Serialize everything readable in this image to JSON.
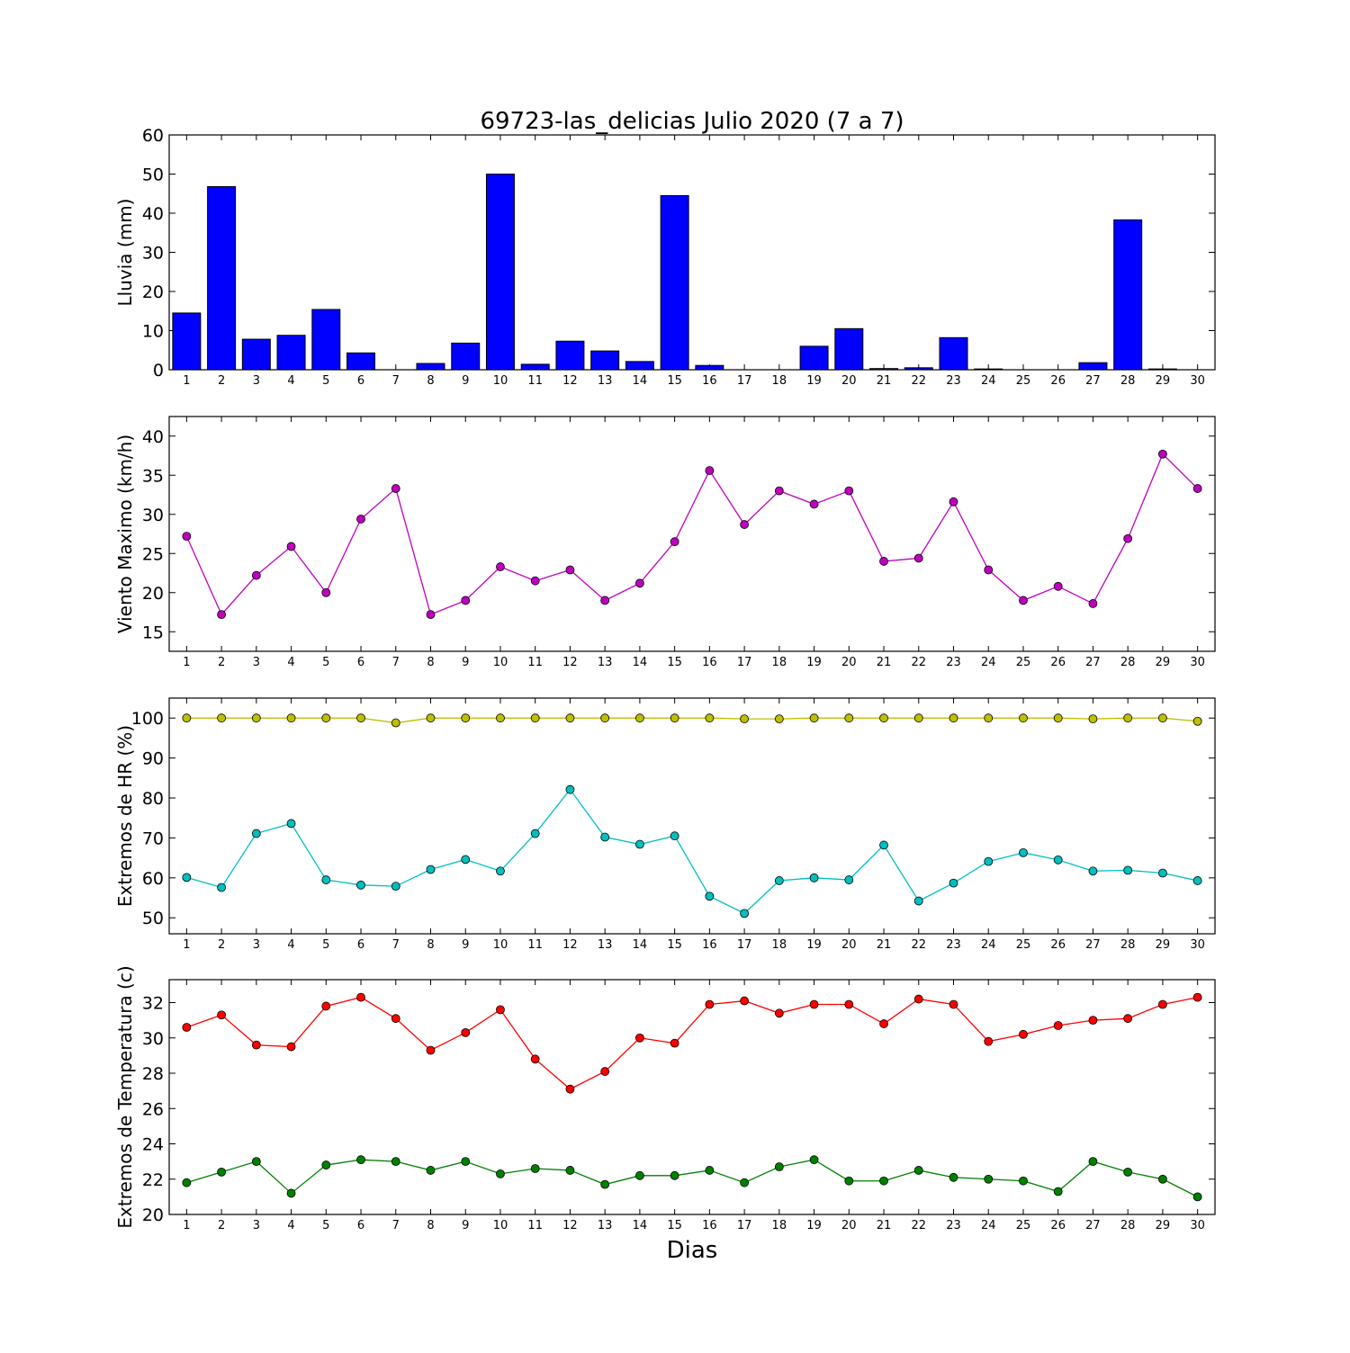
{
  "title": "69723-las_delicias Julio 2020  (7 a 7)",
  "xlabel": "Dias",
  "chart_data": [
    {
      "type": "bar",
      "ylabel": "Lluvia (mm)",
      "ylim": [
        0,
        60
      ],
      "yticks": [
        0,
        10,
        20,
        30,
        40,
        50,
        60
      ],
      "x": [
        1,
        2,
        3,
        4,
        5,
        6,
        7,
        8,
        9,
        10,
        11,
        12,
        13,
        14,
        15,
        16,
        17,
        18,
        19,
        20,
        21,
        22,
        23,
        24,
        25,
        26,
        27,
        28,
        29,
        30
      ],
      "series": [
        {
          "color": "#0000ff",
          "values": [
            14.5,
            46.8,
            7.8,
            8.8,
            15.4,
            4.3,
            0,
            1.6,
            6.8,
            50.0,
            1.4,
            7.3,
            4.8,
            2.1,
            44.5,
            1.1,
            0,
            0,
            6.0,
            10.5,
            0.3,
            0.5,
            8.2,
            0.2,
            0,
            0,
            1.8,
            38.3,
            0.2,
            0
          ]
        }
      ]
    },
    {
      "type": "line",
      "ylabel": "Viento Maximo (km/h)",
      "ylim": [
        12.5,
        42.5
      ],
      "yticks": [
        15,
        20,
        25,
        30,
        35,
        40
      ],
      "x": [
        1,
        2,
        3,
        4,
        5,
        6,
        7,
        8,
        9,
        10,
        11,
        12,
        13,
        14,
        15,
        16,
        17,
        18,
        19,
        20,
        21,
        22,
        23,
        24,
        25,
        26,
        27,
        28,
        29,
        30
      ],
      "series": [
        {
          "color": "#bf00bf",
          "values": [
            27.2,
            17.2,
            22.2,
            25.9,
            20.0,
            29.4,
            33.3,
            17.2,
            19.0,
            23.3,
            21.5,
            22.9,
            19.0,
            21.2,
            26.5,
            35.6,
            28.7,
            33.0,
            31.3,
            33.0,
            24.0,
            24.4,
            31.6,
            22.9,
            19.0,
            20.8,
            18.6,
            26.9,
            37.7,
            33.3
          ]
        }
      ]
    },
    {
      "type": "line",
      "ylabel": "Extremos de HR (%)",
      "ylim": [
        46,
        105
      ],
      "yticks": [
        50,
        60,
        70,
        80,
        90,
        100
      ],
      "x": [
        1,
        2,
        3,
        4,
        5,
        6,
        7,
        8,
        9,
        10,
        11,
        12,
        13,
        14,
        15,
        16,
        17,
        18,
        19,
        20,
        21,
        22,
        23,
        24,
        25,
        26,
        27,
        28,
        29,
        30
      ],
      "series": [
        {
          "color": "#bfbf00",
          "values": [
            100,
            100,
            100,
            100,
            100,
            100,
            98.8,
            100,
            100,
            100,
            100,
            100,
            100,
            100,
            100,
            100,
            99.8,
            99.8,
            100,
            100,
            100,
            100,
            100,
            100,
            100,
            100,
            99.8,
            100,
            100,
            99.2
          ]
        },
        {
          "color": "#00bfbf",
          "values": [
            60.1,
            57.6,
            71.1,
            73.6,
            59.5,
            58.2,
            57.9,
            62.1,
            64.6,
            61.7,
            71.1,
            82.1,
            70.2,
            68.4,
            70.5,
            55.4,
            51.1,
            59.3,
            60.0,
            59.5,
            68.2,
            54.2,
            58.7,
            64.1,
            66.3,
            64.5,
            61.7,
            61.9,
            61.2,
            59.3
          ]
        }
      ]
    },
    {
      "type": "line",
      "ylabel": "Extremos de Temperatura (c)",
      "ylim": [
        20,
        33.3
      ],
      "yticks": [
        20,
        22,
        24,
        26,
        28,
        30,
        32
      ],
      "x": [
        1,
        2,
        3,
        4,
        5,
        6,
        7,
        8,
        9,
        10,
        11,
        12,
        13,
        14,
        15,
        16,
        17,
        18,
        19,
        20,
        21,
        22,
        23,
        24,
        25,
        26,
        27,
        28,
        29,
        30
      ],
      "series": [
        {
          "color": "#ff0000",
          "values": [
            30.6,
            31.3,
            29.6,
            29.5,
            31.8,
            32.3,
            31.1,
            29.3,
            30.3,
            31.6,
            28.8,
            27.1,
            28.1,
            30.0,
            29.7,
            31.9,
            32.1,
            31.4,
            31.9,
            31.9,
            30.8,
            32.2,
            31.9,
            29.8,
            30.2,
            30.7,
            31.0,
            31.1,
            31.9,
            32.3
          ]
        },
        {
          "color": "#008000",
          "values": [
            21.8,
            22.4,
            23.0,
            21.2,
            22.8,
            23.1,
            23.0,
            22.5,
            23.0,
            22.3,
            22.6,
            22.5,
            21.7,
            22.2,
            22.2,
            22.5,
            21.8,
            22.7,
            23.1,
            21.9,
            21.9,
            22.5,
            22.1,
            22.0,
            21.9,
            21.3,
            23.0,
            22.4,
            22.0,
            21.0
          ]
        }
      ]
    }
  ]
}
